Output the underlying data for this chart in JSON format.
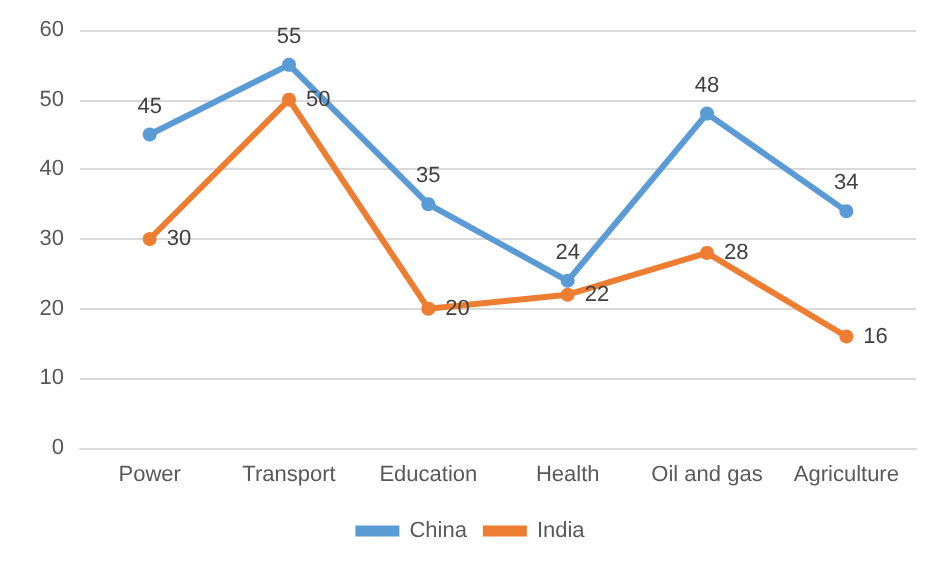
{
  "chart_data": {
    "type": "line",
    "categories": [
      "Power",
      "Transport",
      "Education",
      "Health",
      "Oil and gas",
      "Agriculture"
    ],
    "series": [
      {
        "name": "China",
        "color": "#5b9bd5",
        "values": [
          45,
          55,
          35,
          24,
          48,
          34
        ]
      },
      {
        "name": "India",
        "color": "#ed7d31",
        "values": [
          30,
          50,
          20,
          22,
          28,
          16
        ]
      }
    ],
    "ylim": [
      0,
      60
    ],
    "yticks": [
      0,
      10,
      20,
      30,
      40,
      50,
      60
    ],
    "grid": "y",
    "legend": "bottom",
    "marker": "circle",
    "data_labels": true
  }
}
